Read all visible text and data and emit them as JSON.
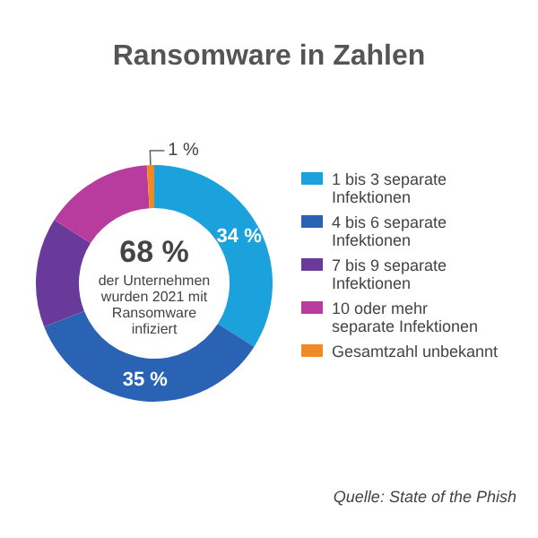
{
  "chart_data": {
    "type": "donut",
    "title": "Ransomware in Zahlen",
    "categories": [
      "1 bis 3 separate Infektionen",
      "4 bis 6 separate Infektionen",
      "7 bis 9 separate Infektionen",
      "10 oder mehr separate Infektionen",
      "Gesamtzahl unbekannt"
    ],
    "values": [
      34,
      35,
      15,
      15,
      1
    ],
    "colors": [
      "#1ba1dc",
      "#2a63b3",
      "#6a3a9a",
      "#b83c9e",
      "#f08a24"
    ],
    "value_labels": [
      "34 %",
      "35 %",
      null,
      null,
      "1 %"
    ],
    "legend": "right",
    "annotations": [
      "68 %",
      "der Unternehmen wurden 2021 mit Ransomware infiziert",
      "Quelle: State of the Phish"
    ]
  }
}
